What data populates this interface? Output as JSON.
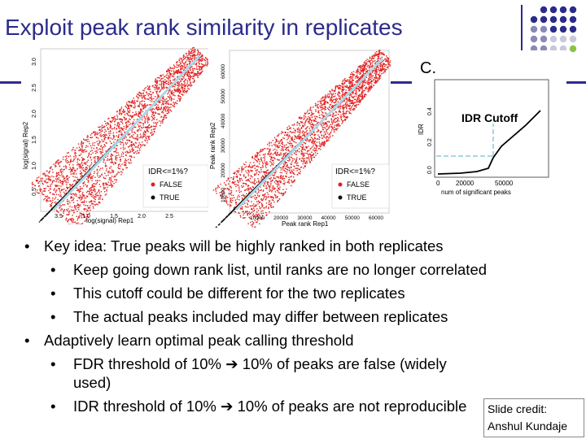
{
  "slide": {
    "title": "Exploit peak rank similarity in replicates"
  },
  "figure_a": {
    "ylabel": "log(signal) Rep2",
    "xlabel": "log(signal) Rep1",
    "xticks": [
      "3.5",
      "1.0",
      "1.5",
      "2.0",
      "2.5"
    ],
    "yticks": [
      "0.5",
      "1.0",
      "1.5",
      "2.0",
      "2.5",
      "3.0"
    ],
    "legend_title": "IDR<=1%?",
    "legend_false": "FALSE",
    "legend_true": "TRUE"
  },
  "figure_b": {
    "ylabel": "Peak rank Rep2",
    "xlabel": "Peak rank Rep1",
    "xticks": [
      "10000",
      "20000",
      "30000",
      "40000",
      "50000",
      "60000"
    ],
    "yticks": [
      "10000",
      "20000",
      "30000",
      "40000",
      "50000",
      "60000"
    ],
    "legend_title": "IDR<=1%?",
    "legend_false": "FALSE",
    "legend_true": "TRUE"
  },
  "figure_c": {
    "panel_label": "C.",
    "ylabel": "IDR",
    "xlabel": "num of significant peaks",
    "xticks": [
      "0",
      "20000",
      "50000"
    ],
    "yticks": [
      "0.0",
      "0.2",
      "0.4"
    ],
    "annotation": "IDR Cutoff"
  },
  "bullets": [
    {
      "level": 1,
      "text": "Key idea: True peaks will be highly ranked in both replicates"
    },
    {
      "level": 2,
      "text": "Keep going down rank list, until ranks are no longer correlated"
    },
    {
      "level": 2,
      "text": "This cutoff could be different for the two replicates"
    },
    {
      "level": 2,
      "text": "The actual peaks included may differ between replicates"
    },
    {
      "level": 1,
      "text": "Adaptively learn optimal peak calling threshold"
    },
    {
      "level": 2,
      "text": "FDR threshold of 10% ➔ 10% of peaks are false (widely"
    },
    {
      "level": 2,
      "text": "used)",
      "continuation": true
    },
    {
      "level": 2,
      "text": "IDR threshold of 10% ➔ 10% of peaks are not reproducible"
    }
  ],
  "credit": {
    "line1": "Slide credit:",
    "line2": "Anshul Kundaje"
  },
  "colors": {
    "title": "#2b2b8c",
    "red_points": "#e0201f",
    "black_points": "#111111",
    "diag_line": "#a8d8e8",
    "accent_green": "#8bc34a"
  }
}
